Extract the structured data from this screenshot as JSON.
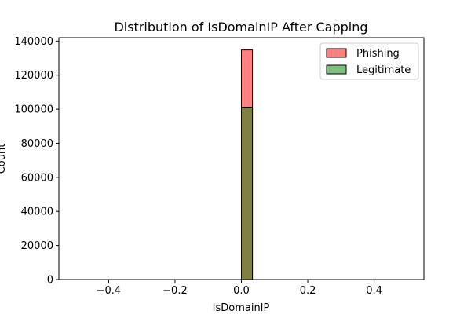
{
  "chart_data": {
    "type": "bar",
    "title": "Distribution of IsDomainIP After Capping",
    "xlabel": "IsDomainIP",
    "ylabel": "Count",
    "xlim": [
      -0.55,
      0.55
    ],
    "ylim": [
      0,
      142000
    ],
    "xticks": [
      -0.4,
      -0.2,
      0.0,
      0.2,
      0.4
    ],
    "xtick_labels": [
      "−0.4",
      "−0.2",
      "0.0",
      "0.2",
      "0.4"
    ],
    "yticks": [
      0,
      20000,
      40000,
      60000,
      80000,
      100000,
      120000,
      140000
    ],
    "ytick_labels": [
      "0",
      "20000",
      "40000",
      "60000",
      "80000",
      "100000",
      "120000",
      "140000"
    ],
    "grid": false,
    "legend_position": "top-right",
    "hist_range": [
      -0.5,
      0.5
    ],
    "bin_width": 0.0333,
    "series": [
      {
        "name": "Phishing",
        "color": "#ff0000",
        "alpha": 0.5,
        "bars": [
          {
            "x0": 0.0,
            "x1": 0.0333,
            "count": 134800
          }
        ]
      },
      {
        "name": "Legitimate",
        "color": "#008000",
        "alpha": 0.5,
        "bars": [
          {
            "x0": 0.0,
            "x1": 0.0333,
            "count": 101200
          }
        ]
      }
    ]
  }
}
